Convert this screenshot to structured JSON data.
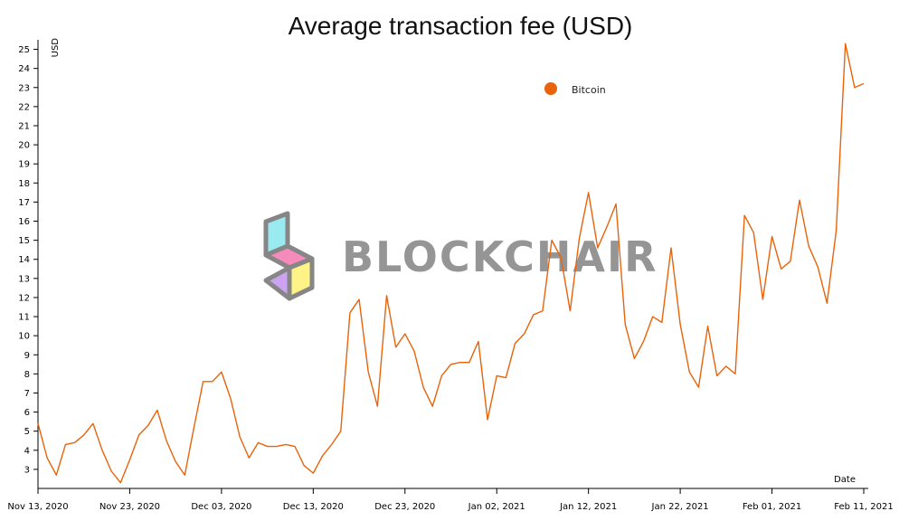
{
  "chart_data": {
    "type": "line",
    "title": "Average transaction fee (USD)",
    "ylabel": "USD",
    "xlabel": "Date",
    "legend": {
      "position": "top-center",
      "entries": [
        "Bitcoin"
      ]
    },
    "grid": false,
    "ylim": [
      2,
      25.5
    ],
    "xlim": [
      "2020-11-13",
      "2021-02-11"
    ],
    "y_ticks": [
      "3",
      "4",
      "5",
      "6",
      "7",
      "8",
      "9",
      "10",
      "11",
      "12",
      "13",
      "14",
      "15",
      "16",
      "17",
      "18",
      "19",
      "20",
      "21",
      "22",
      "23",
      "24",
      "25"
    ],
    "x_ticks": [
      {
        "label": "Nov 13, 2020",
        "date": "2020-11-13"
      },
      {
        "label": "Nov 23, 2020",
        "date": "2020-11-23"
      },
      {
        "label": "Dec 03, 2020",
        "date": "2020-12-03"
      },
      {
        "label": "Dec 13, 2020",
        "date": "2020-12-13"
      },
      {
        "label": "Dec 23, 2020",
        "date": "2020-12-23"
      },
      {
        "label": "Jan 02, 2021",
        "date": "2021-01-02"
      },
      {
        "label": "Jan 12, 2021",
        "date": "2021-01-12"
      },
      {
        "label": "Jan 22, 2021",
        "date": "2021-01-22"
      },
      {
        "label": "Feb 01, 2021",
        "date": "2021-02-01"
      },
      {
        "label": "Feb 11, 2021",
        "date": "2021-02-11"
      }
    ],
    "series": [
      {
        "name": "Bitcoin",
        "color": "#e8630a",
        "x": [
          "2020-11-13",
          "2020-11-14",
          "2020-11-15",
          "2020-11-16",
          "2020-11-17",
          "2020-11-18",
          "2020-11-19",
          "2020-11-20",
          "2020-11-21",
          "2020-11-22",
          "2020-11-23",
          "2020-11-24",
          "2020-11-25",
          "2020-11-26",
          "2020-11-27",
          "2020-11-28",
          "2020-11-29",
          "2020-11-30",
          "2020-12-01",
          "2020-12-02",
          "2020-12-03",
          "2020-12-04",
          "2020-12-05",
          "2020-12-06",
          "2020-12-07",
          "2020-12-08",
          "2020-12-09",
          "2020-12-10",
          "2020-12-11",
          "2020-12-12",
          "2020-12-13",
          "2020-12-14",
          "2020-12-15",
          "2020-12-16",
          "2020-12-17",
          "2020-12-18",
          "2020-12-19",
          "2020-12-20",
          "2020-12-21",
          "2020-12-22",
          "2020-12-23",
          "2020-12-24",
          "2020-12-25",
          "2020-12-26",
          "2020-12-27",
          "2020-12-28",
          "2020-12-29",
          "2020-12-30",
          "2020-12-31",
          "2021-01-01",
          "2021-01-02",
          "2021-01-03",
          "2021-01-04",
          "2021-01-05",
          "2021-01-06",
          "2021-01-07",
          "2021-01-08",
          "2021-01-09",
          "2021-01-10",
          "2021-01-11",
          "2021-01-12",
          "2021-01-13",
          "2021-01-14",
          "2021-01-15",
          "2021-01-16",
          "2021-01-17",
          "2021-01-18",
          "2021-01-19",
          "2021-01-20",
          "2021-01-21",
          "2021-01-22",
          "2021-01-23",
          "2021-01-24",
          "2021-01-25",
          "2021-01-26",
          "2021-01-27",
          "2021-01-28",
          "2021-01-29",
          "2021-01-30",
          "2021-01-31",
          "2021-02-01",
          "2021-02-02",
          "2021-02-03",
          "2021-02-04",
          "2021-02-05",
          "2021-02-06",
          "2021-02-07",
          "2021-02-08",
          "2021-02-09",
          "2021-02-10",
          "2021-02-11"
        ],
        "values": [
          5.4,
          3.6,
          2.7,
          4.3,
          4.4,
          4.8,
          5.4,
          4.0,
          2.9,
          2.3,
          3.5,
          4.8,
          5.3,
          6.1,
          4.5,
          3.4,
          2.7,
          5.2,
          7.6,
          7.6,
          8.1,
          6.7,
          4.7,
          3.6,
          4.4,
          4.2,
          4.2,
          4.3,
          4.2,
          3.2,
          2.8,
          3.7,
          4.3,
          5.0,
          11.2,
          11.9,
          8.1,
          6.3,
          12.1,
          9.4,
          10.1,
          9.2,
          7.3,
          6.3,
          7.9,
          8.5,
          8.6,
          8.6,
          9.7,
          5.6,
          7.9,
          7.8,
          9.6,
          10.1,
          11.1,
          11.3,
          15.0,
          14.1,
          11.3,
          15.1,
          17.5,
          14.6,
          15.7,
          16.9,
          10.6,
          8.8,
          9.7,
          11.0,
          10.7,
          14.6,
          10.6,
          8.1,
          7.3,
          10.5,
          7.9,
          8.4,
          8.0,
          16.3,
          15.4,
          11.9,
          15.2,
          13.5,
          13.9,
          17.1,
          14.7,
          13.6,
          11.7,
          15.5,
          25.3,
          23.0,
          23.2
        ]
      }
    ]
  },
  "watermark": {
    "text": "BLOCKCHAIR",
    "icon": "blockchair-logo-icon"
  }
}
